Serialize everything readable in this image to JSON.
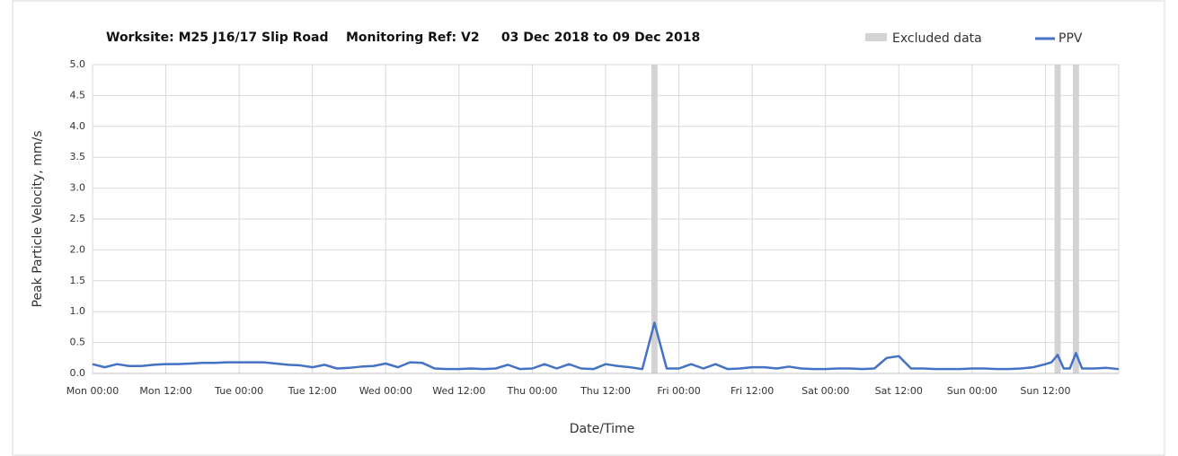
{
  "chart_data": {
    "type": "line",
    "title": "Worksite: M25 J16/17 Slip Road    Monitoring Ref: V2     03 Dec 2018 to 09 Dec 2018",
    "x_label": "Date/Time",
    "y_label": "Peak Particle Velocity, mm/s",
    "xlim": [
      0,
      168
    ],
    "ylim": [
      0,
      5
    ],
    "xticks": [
      {
        "value": 0,
        "label": "Mon 00:00"
      },
      {
        "value": 12,
        "label": "Mon 12:00"
      },
      {
        "value": 24,
        "label": "Tue 00:00"
      },
      {
        "value": 36,
        "label": "Tue 12:00"
      },
      {
        "value": 48,
        "label": "Wed 00:00"
      },
      {
        "value": 60,
        "label": "Wed 12:00"
      },
      {
        "value": 72,
        "label": "Thu 00:00"
      },
      {
        "value": 84,
        "label": "Thu 12:00"
      },
      {
        "value": 96,
        "label": "Fri 00:00"
      },
      {
        "value": 108,
        "label": "Fri 12:00"
      },
      {
        "value": 120,
        "label": "Sat 00:00"
      },
      {
        "value": 132,
        "label": "Sat 12:00"
      },
      {
        "value": 144,
        "label": "Sun 00:00"
      },
      {
        "value": 156,
        "label": "Sun 12:00"
      }
    ],
    "yticks": [
      {
        "value": 0,
        "label": "0.0"
      },
      0.5,
      {
        "value": 1,
        "label": "1.0"
      },
      1.5,
      {
        "value": 2,
        "label": "2.0"
      },
      2.5,
      {
        "value": 3,
        "label": "3.0"
      },
      3.5,
      {
        "value": 4,
        "label": "4.0"
      },
      4.5,
      {
        "value": 5,
        "label": "5.0"
      }
    ],
    "grid": true,
    "excluded": {
      "name": "Excluded data",
      "color": "#d3d3d3",
      "ranges": [
        [
          91.5,
          92.5
        ],
        [
          157.5,
          158.5
        ],
        [
          160.5,
          161.5
        ]
      ]
    },
    "series": [
      {
        "name": "PPV",
        "color": "#4472c4",
        "x": [
          0,
          2,
          4,
          6,
          8,
          10,
          12,
          14,
          16,
          18,
          20,
          22,
          24,
          26,
          28,
          30,
          32,
          34,
          36,
          38,
          40,
          42,
          44,
          46,
          48,
          50,
          52,
          54,
          56,
          58,
          60,
          62,
          64,
          66,
          68,
          70,
          72,
          74,
          76,
          78,
          80,
          82,
          84,
          86,
          88,
          90,
          92,
          94,
          96,
          98,
          100,
          102,
          104,
          106,
          108,
          110,
          112,
          114,
          116,
          118,
          120,
          122,
          124,
          126,
          128,
          130,
          132,
          134,
          136,
          138,
          140,
          142,
          144,
          146,
          148,
          150,
          152,
          154,
          156,
          157,
          158,
          159,
          160,
          161,
          162,
          164,
          166,
          168
        ],
        "values": [
          0.15,
          0.1,
          0.15,
          0.12,
          0.12,
          0.14,
          0.15,
          0.15,
          0.16,
          0.17,
          0.17,
          0.18,
          0.18,
          0.18,
          0.18,
          0.16,
          0.14,
          0.13,
          0.1,
          0.14,
          0.08,
          0.09,
          0.11,
          0.12,
          0.16,
          0.1,
          0.18,
          0.17,
          0.08,
          0.07,
          0.07,
          0.08,
          0.07,
          0.08,
          0.14,
          0.07,
          0.08,
          0.15,
          0.08,
          0.15,
          0.08,
          0.07,
          0.15,
          0.12,
          0.1,
          0.07,
          0.82,
          0.08,
          0.08,
          0.15,
          0.08,
          0.15,
          0.07,
          0.08,
          0.1,
          0.1,
          0.08,
          0.11,
          0.08,
          0.07,
          0.07,
          0.08,
          0.08,
          0.07,
          0.08,
          0.25,
          0.28,
          0.08,
          0.08,
          0.07,
          0.07,
          0.07,
          0.08,
          0.08,
          0.07,
          0.07,
          0.08,
          0.1,
          0.15,
          0.18,
          0.3,
          0.08,
          0.08,
          0.33,
          0.08,
          0.08,
          0.09,
          0.07
        ]
      }
    ]
  }
}
